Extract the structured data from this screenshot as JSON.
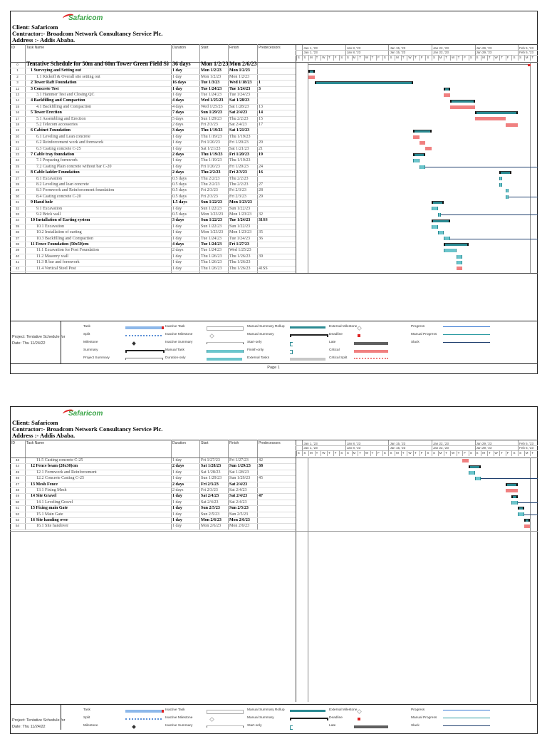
{
  "header": {
    "logo_text": "Safaricom",
    "client": "Client: Safaricom",
    "contractor": "Contractor:- Broadcom Network Consultancy Service Plc.",
    "address": "Address :- Addis Ababa."
  },
  "columns": {
    "id": "ID",
    "name": "Task Name",
    "duration": "Duration",
    "start": "Start",
    "finish": "Finish",
    "predecessors": "Predecessors"
  },
  "timescale": {
    "weeks": [
      "Jan 1, '23",
      "Jan 8, '23",
      "Jan 15, '23",
      "Jan 22, '23",
      "Jan 29, '23",
      "Feb 5, '23"
    ],
    "days": [
      "S",
      "S",
      "M",
      "T",
      "W",
      "T",
      "F",
      "S",
      "S",
      "M",
      "T",
      "W",
      "T",
      "F",
      "S",
      "S",
      "M",
      "T",
      "W",
      "T",
      "F",
      "S",
      "S",
      "M",
      "T",
      "W",
      "T",
      "F",
      "S",
      "S",
      "M",
      "T",
      "W",
      "T",
      "F",
      "S",
      "S",
      "M",
      "T"
    ]
  },
  "colors": {
    "summary": "#2a8a92",
    "task": "#6cc5cc",
    "critical": "#f08080",
    "slack": "#1f3f6e"
  },
  "pages": [
    {
      "footer": "Page 1",
      "rows": [
        {
          "id": "0",
          "name": "Tentative Schedule for 50m and 60m Tower Green Field Site",
          "duration": "36 days",
          "start": "Mon 1/2/23",
          "finish": "Mon 2/6/23",
          "pred": "",
          "level": 0,
          "type": "project"
        },
        {
          "id": "1",
          "name": "1 Surveying and Setting out",
          "duration": "1 day",
          "start": "Mon 1/2/23",
          "finish": "Mon 1/2/23",
          "pred": "",
          "level": 1,
          "type": "summary"
        },
        {
          "id": "2",
          "name": "1.1 Kickoff & Overall site setting out",
          "duration": "1 day",
          "start": "Mon 1/2/23",
          "finish": "Mon 1/2/23",
          "pred": "",
          "level": 2,
          "type": "critical"
        },
        {
          "id": "3",
          "name": "2 Tower Raft Foundation",
          "duration": "16 days",
          "start": "Tue 1/3/23",
          "finish": "Wed 1/18/23",
          "pred": "1",
          "level": 1,
          "type": "summary"
        },
        {
          "id": "12",
          "name": "3  Concrete Test",
          "duration": "1 day",
          "start": "Tue 1/24/23",
          "finish": "Tue 1/24/23",
          "pred": "3",
          "level": 1,
          "type": "summary"
        },
        {
          "id": "13",
          "name": "3.1 Hammer Test and Closing QC",
          "duration": "1 day",
          "start": "Tue 1/24/23",
          "finish": "Tue 1/24/23",
          "pred": "",
          "level": 2,
          "type": "critical"
        },
        {
          "id": "14",
          "name": "4 Backfilling and Compaction",
          "duration": "4 days",
          "start": "Wed 1/25/23",
          "finish": "Sat 1/28/23",
          "pred": "",
          "level": 1,
          "type": "summary"
        },
        {
          "id": "15",
          "name": "4.1  Backfilling and Compaction",
          "duration": "4 days",
          "start": "Wed 1/25/23",
          "finish": "Sat 1/28/23",
          "pred": "13",
          "level": 2,
          "type": "critical"
        },
        {
          "id": "16",
          "name": "5 Tower Erection",
          "duration": "7 days",
          "start": "Sun 1/29/23",
          "finish": "Sat 2/4/23",
          "pred": "14",
          "level": 1,
          "type": "summary"
        },
        {
          "id": "17",
          "name": "5.1 Assembling and Erection",
          "duration": "5 days",
          "start": "Sun 1/29/23",
          "finish": "Thu 2/2/23",
          "pred": "15",
          "level": 2,
          "type": "critical"
        },
        {
          "id": "18",
          "name": "5.2 Telecom accessories",
          "duration": "2 days",
          "start": "Fri 2/3/23",
          "finish": "Sat 2/4/23",
          "pred": "17",
          "level": 2,
          "type": "critical"
        },
        {
          "id": "19",
          "name": "6 Cabinet Foundation",
          "duration": "3 days",
          "start": "Thu 1/19/23",
          "finish": "Sat 1/21/23",
          "pred": "",
          "level": 1,
          "type": "summary"
        },
        {
          "id": "20",
          "name": "6.1 Leveling and Lean concrete",
          "duration": "1 day",
          "start": "Thu 1/19/23",
          "finish": "Thu 1/19/23",
          "pred": "",
          "level": 2,
          "type": "critical"
        },
        {
          "id": "21",
          "name": "6.2 Reinforcement work and formwork",
          "duration": "1 day",
          "start": "Fri 1/20/23",
          "finish": "Fri 1/20/23",
          "pred": "20",
          "level": 2,
          "type": "critical"
        },
        {
          "id": "22",
          "name": "6.3 Casting concrete C-25",
          "duration": "1 day",
          "start": "Sat 1/21/23",
          "finish": "Sat 1/21/23",
          "pred": "21",
          "level": 2,
          "type": "critical"
        },
        {
          "id": "23",
          "name": "7 Cable tray foundation",
          "duration": "2 days",
          "start": "Thu 1/19/23",
          "finish": "Fri 1/20/23",
          "pred": "19",
          "level": 1,
          "type": "summary"
        },
        {
          "id": "24",
          "name": "7.1 Preparing formwork",
          "duration": "1 day",
          "start": "Thu 1/19/23",
          "finish": "Thu 1/19/23",
          "pred": "",
          "level": 2,
          "type": "task"
        },
        {
          "id": "25",
          "name": "7.2 Casting Plain concrete without bar C-20",
          "duration": "1 day",
          "start": "Fri 1/20/23",
          "finish": "Fri 1/20/23",
          "pred": "24",
          "level": 2,
          "type": "task",
          "slack": true
        },
        {
          "id": "26",
          "name": "8  Cable ladder Foundation",
          "duration": "2 days",
          "start": "Thu 2/2/23",
          "finish": "Fri 2/3/23",
          "pred": "16",
          "level": 1,
          "type": "summary"
        },
        {
          "id": "27",
          "name": "8.1  Excavation",
          "duration": "0.5 days",
          "start": "Thu 2/2/23",
          "finish": "Thu 2/2/23",
          "pred": "",
          "level": 2,
          "type": "task"
        },
        {
          "id": "28",
          "name": "8.2  Leveling and  lean concrete",
          "duration": "0.5 days",
          "start": "Thu 2/2/23",
          "finish": "Thu 2/2/23",
          "pred": "27",
          "level": 2,
          "type": "task"
        },
        {
          "id": "29",
          "name": "8.3  Formwork and Reinforcement foundation",
          "duration": "0.5 days",
          "start": "Fri 2/3/23",
          "finish": "Fri 2/3/23",
          "pred": "28",
          "level": 2,
          "type": "task"
        },
        {
          "id": "30",
          "name": "8.4 Casting concrete C-20",
          "duration": "0.5 days",
          "start": "Fri 2/3/23",
          "finish": "Fri 2/3/23",
          "pred": "29",
          "level": 2,
          "type": "task",
          "slack": true
        },
        {
          "id": "31",
          "name": "9 Hand hole",
          "duration": "1.5 days",
          "start": "Sun 1/22/23",
          "finish": "Mon 1/23/23",
          "pred": "",
          "level": 1,
          "type": "summary"
        },
        {
          "id": "32",
          "name": "9.1 Excavation",
          "duration": "1 day",
          "start": "Sun 1/22/23",
          "finish": "Sun 1/22/23",
          "pred": "",
          "level": 2,
          "type": "task"
        },
        {
          "id": "33",
          "name": "9.2 Brick wall",
          "duration": "0.5 days",
          "start": "Mon 1/23/23",
          "finish": "Mon 1/23/23",
          "pred": "32",
          "level": 2,
          "type": "task",
          "slack": true
        },
        {
          "id": "34",
          "name": "10 Installation of Earting system",
          "duration": "3 days",
          "start": "Sun 1/22/23",
          "finish": "Tue 1/24/23",
          "pred": "31SS",
          "level": 1,
          "type": "summary"
        },
        {
          "id": "35",
          "name": "10.1  Excavation",
          "duration": "1 day",
          "start": "Sun 1/22/23",
          "finish": "Sun 1/22/23",
          "pred": "",
          "level": 2,
          "type": "task"
        },
        {
          "id": "36",
          "name": "10.2  Installation of earting",
          "duration": "1 day",
          "start": "Mon 1/23/23",
          "finish": "Mon 1/23/23",
          "pred": "35",
          "level": 2,
          "type": "task"
        },
        {
          "id": "37",
          "name": "10.3 Backfilling and Compaction",
          "duration": "1 day",
          "start": "Tue 1/24/23",
          "finish": "Tue 1/24/23",
          "pred": "36",
          "level": 2,
          "type": "task",
          "slack": true
        },
        {
          "id": "38",
          "name": "11 Fence Foundation (50x50)cm",
          "duration": "4 days",
          "start": "Tue 1/24/23",
          "finish": "Fri 1/27/23",
          "pred": "",
          "level": 1,
          "type": "summary"
        },
        {
          "id": "39",
          "name": "11.1 Excavation for Post Foundation",
          "duration": "2 days",
          "start": "Tue 1/24/23",
          "finish": "Wed 1/25/23",
          "pred": "",
          "level": 2,
          "type": "task"
        },
        {
          "id": "40",
          "name": "11.2 Masonry wall",
          "duration": "1 day",
          "start": "Thu 1/26/23",
          "finish": "Thu 1/26/23",
          "pred": "39",
          "level": 2,
          "type": "task"
        },
        {
          "id": "41",
          "name": "11.3 R bar and formwork",
          "duration": "1 day",
          "start": "Thu 1/26/23",
          "finish": "Thu 1/26/23",
          "pred": "",
          "level": 2,
          "type": "task"
        },
        {
          "id": "42",
          "name": "11.4 Vertical Steel Post",
          "duration": "1 day",
          "start": "Thu 1/26/23",
          "finish": "Thu 1/26/23",
          "pred": "41SS",
          "level": 2,
          "type": "critical"
        }
      ]
    },
    {
      "footer": "",
      "rows": [
        {
          "id": "43",
          "name": "11.5 Casting concrete C-25",
          "duration": "1 day",
          "start": "Fri 1/27/23",
          "finish": "Fri 1/27/23",
          "pred": "42",
          "level": 2,
          "type": "critical"
        },
        {
          "id": "44",
          "name": "12 Fence beam (20x30)cm",
          "duration": "2 days",
          "start": "Sat 1/28/23",
          "finish": "Sun 1/29/23",
          "pred": "38",
          "level": 1,
          "type": "summary"
        },
        {
          "id": "45",
          "name": "12.1 Formwork and Reinforcement",
          "duration": "1 day",
          "start": "Sat 1/28/23",
          "finish": "Sat 1/28/23",
          "pred": "",
          "level": 2,
          "type": "task"
        },
        {
          "id": "46",
          "name": "12.2 Concrete Casting C-25",
          "duration": "1 day",
          "start": "Sun 1/29/23",
          "finish": "Sun 1/29/23",
          "pred": "45",
          "level": 2,
          "type": "task",
          "slack": true
        },
        {
          "id": "47",
          "name": "13 Mesh Fence",
          "duration": "2 days",
          "start": "Fri 2/3/23",
          "finish": "Sat 2/4/23",
          "pred": "",
          "level": 1,
          "type": "summary"
        },
        {
          "id": "48",
          "name": "13.1  Fixing Mesh",
          "duration": "2 days",
          "start": "Fri 2/3/23",
          "finish": "Sat 2/4/23",
          "pred": "",
          "level": 2,
          "type": "critical"
        },
        {
          "id": "49",
          "name": "14 Site Gravel",
          "duration": "1 day",
          "start": "Sat 2/4/23",
          "finish": "Sat 2/4/23",
          "pred": "47",
          "level": 1,
          "type": "summary"
        },
        {
          "id": "50",
          "name": "14.1 Leveling  Gravel",
          "duration": "1 day",
          "start": "Sat 2/4/23",
          "finish": "Sat 2/4/23",
          "pred": "",
          "level": 2,
          "type": "task",
          "slack": true
        },
        {
          "id": "51",
          "name": "15 Fixing main Gate",
          "duration": "1 day",
          "start": "Sun 2/5/23",
          "finish": "Sun 2/5/23",
          "pred": "",
          "level": 1,
          "type": "summary"
        },
        {
          "id": "52",
          "name": "15.1 Main Gate",
          "duration": "1 day",
          "start": "Sun 2/5/23",
          "finish": "Sun 2/5/23",
          "pred": "",
          "level": 2,
          "type": "task",
          "slack": true
        },
        {
          "id": "53",
          "name": "16 Site handing over",
          "duration": "1 day",
          "start": "Mon 2/6/23",
          "finish": "Mon 2/6/23",
          "pred": "",
          "level": 1,
          "type": "summary"
        },
        {
          "id": "54",
          "name": "16.1 Site handover",
          "duration": "1 day",
          "start": "Mon 2/6/23",
          "finish": "Mon 2/6/23",
          "pred": "",
          "level": 2,
          "type": "critical"
        }
      ]
    }
  ],
  "legend": {
    "project_line1": "Project: Tentative Schedule for",
    "project_line2": "Date: Thu 11/24/22",
    "items": [
      [
        {
          "label": "Task",
          "sym": "task"
        },
        {
          "label": "Split",
          "sym": "split"
        },
        {
          "label": "Milestone",
          "sym": "milestone"
        },
        {
          "label": "Summary",
          "sym": "summary"
        },
        {
          "label": "Project Summary",
          "sym": "projsum"
        }
      ],
      [
        {
          "label": "Inactive Task",
          "sym": "inactive"
        },
        {
          "label": "Inactive Milestone",
          "sym": "inmile"
        },
        {
          "label": "Inactive Summary",
          "sym": "insum"
        },
        {
          "label": "Manual Task",
          "sym": "manual"
        },
        {
          "label": "Duration-only",
          "sym": "duronly"
        }
      ],
      [
        {
          "label": "Manual Summary Rollup",
          "sym": "rollup"
        },
        {
          "label": "Manual Summary",
          "sym": "summary"
        },
        {
          "label": "Start-only",
          "sym": "startonly"
        },
        {
          "label": "Finish-only",
          "sym": "finishonly"
        },
        {
          "label": "External Tasks",
          "sym": "external"
        }
      ],
      [
        {
          "label": "External Milestone",
          "sym": "inmile"
        },
        {
          "label": "Deadline",
          "sym": "deadline"
        },
        {
          "label": "Late",
          "sym": "late"
        },
        {
          "label": "Critical",
          "sym": "critical"
        },
        {
          "label": "Critical Split",
          "sym": "critsplit"
        }
      ],
      [
        {
          "label": "Progress",
          "sym": "progress"
        },
        {
          "label": "Manual Progress",
          "sym": "manprog"
        },
        {
          "label": "Slack",
          "sym": "slack"
        }
      ]
    ]
  }
}
